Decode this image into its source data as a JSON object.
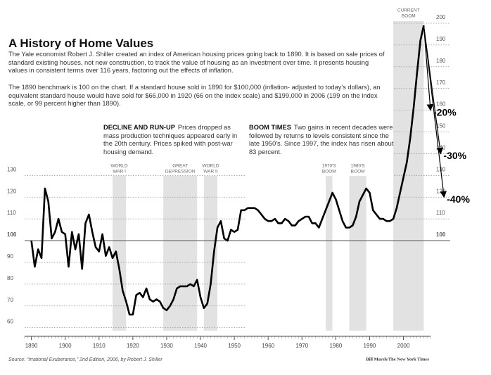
{
  "chart_data": {
    "type": "line",
    "title": "A History of Home Values",
    "paragraphs": [
      "The Yale economist Robert J. Shiller created an index of American housing prices going back to 1890. It is based on sale prices of standard existing houses, not new construction, to track the value of housing as an investment over time. It presents housing values in consistent terms over 116 years, factoring out the effects of inflation.",
      "The 1890 benchmark is 100 on the chart. If a standard house sold in 1890 for $100,000 (inflation- adjusted to today's dollars), an equivalent standard house would have sold for $66,000 in 1920 (66 on the index scale) and $199,000 in 2006 (199 on the index scale, or 99 percent higher than 1890)."
    ],
    "notes": [
      {
        "heading": "DECLINE AND RUN-UP",
        "text": "Prices dropped as mass production techniques appeared early in the 20th century. Prices spiked with post-war housing demand."
      },
      {
        "heading": "BOOM TIMES",
        "text": "Two gains in recent decades were followed by returns to levels consistent since the late 1950's. Since 1997, the index has risen about 83 percent."
      }
    ],
    "bands": [
      {
        "lines": [
          "WORLD",
          "WAR I"
        ],
        "start": 1914,
        "end": 1918
      },
      {
        "lines": [
          "GREAT",
          "DEPRESSION"
        ],
        "start": 1929,
        "end": 1939
      },
      {
        "lines": [
          "WORLD",
          "WAR II"
        ],
        "start": 1941,
        "end": 1945
      },
      {
        "lines": [
          "1970'S",
          "BOOM"
        ],
        "start": 1977,
        "end": 1979
      },
      {
        "lines": [
          "1980'S",
          "BOOM"
        ],
        "start": 1984,
        "end": 1989
      },
      {
        "lines": [
          "CURRENT",
          "BOOM"
        ],
        "start": 1997,
        "end": 2006
      }
    ],
    "x": [
      1890,
      1891,
      1892,
      1893,
      1894,
      1895,
      1896,
      1897,
      1898,
      1899,
      1900,
      1901,
      1902,
      1903,
      1904,
      1905,
      1906,
      1907,
      1908,
      1909,
      1910,
      1911,
      1912,
      1913,
      1914,
      1915,
      1916,
      1917,
      1918,
      1919,
      1920,
      1921,
      1922,
      1923,
      1924,
      1925,
      1926,
      1927,
      1928,
      1929,
      1930,
      1931,
      1932,
      1933,
      1934,
      1935,
      1936,
      1937,
      1938,
      1939,
      1940,
      1941,
      1942,
      1943,
      1944,
      1945,
      1946,
      1947,
      1948,
      1949,
      1950,
      1951,
      1952,
      1953,
      1954,
      1955,
      1956,
      1957,
      1958,
      1959,
      1960,
      1961,
      1962,
      1963,
      1964,
      1965,
      1966,
      1967,
      1968,
      1969,
      1970,
      1971,
      1972,
      1973,
      1974,
      1975,
      1976,
      1977,
      1978,
      1979,
      1980,
      1981,
      1982,
      1983,
      1984,
      1985,
      1986,
      1987,
      1988,
      1989,
      1990,
      1991,
      1992,
      1993,
      1994,
      1995,
      1996,
      1997,
      1998,
      1999,
      2000,
      2001,
      2002,
      2003,
      2004,
      2005,
      2006
    ],
    "values": [
      100,
      88,
      96,
      92,
      124,
      118,
      101,
      104,
      110,
      104,
      103,
      88,
      104,
      96,
      103,
      87,
      108,
      112,
      104,
      97,
      95,
      103,
      93,
      97,
      92,
      95,
      87,
      77,
      72,
      66,
      66,
      75,
      76,
      74,
      78,
      73,
      72,
      73,
      72,
      69,
      68,
      70,
      73,
      78,
      79,
      79,
      79,
      80,
      79,
      82,
      74,
      69,
      71,
      80,
      95,
      106,
      109,
      101,
      100,
      105,
      104,
      105,
      114,
      114,
      115,
      115,
      115,
      114,
      112,
      110,
      109,
      109,
      110,
      108,
      108,
      110,
      109,
      107,
      107,
      109,
      110,
      111,
      111,
      108,
      108,
      106,
      110,
      114,
      118,
      122,
      119,
      114,
      109,
      106,
      106,
      107,
      111,
      118,
      121,
      124,
      122,
      114,
      112,
      110,
      110,
      109,
      109,
      110,
      115,
      122,
      129,
      136,
      147,
      161,
      177,
      192,
      199
    ],
    "color": "#000000",
    "xlim": [
      1888,
      2008
    ],
    "xticks": [
      1890,
      1900,
      1910,
      1920,
      1930,
      1940,
      1950,
      1960,
      1970,
      1980,
      1990,
      2000
    ],
    "ylim": [
      56,
      200
    ],
    "yticks": [
      60,
      70,
      80,
      90,
      100,
      110,
      120,
      130
    ],
    "y2lim": [
      56,
      200
    ],
    "y2ticks": [
      100,
      110,
      120,
      130,
      140,
      150,
      160,
      170,
      180,
      190,
      200
    ],
    "reference_line": 100,
    "arrows": [
      {
        "label": "-20%",
        "x": 2008,
        "value": 160
      },
      {
        "label": "-30%",
        "x": 2011,
        "value": 140
      },
      {
        "label": "-40%",
        "x": 2012,
        "value": 120
      }
    ],
    "source": "Source: “Irrational Exuberance,” 2nd Edition, 2006, by Robert J. Shiller",
    "credit": "Bill Marsh/The New York Times"
  }
}
